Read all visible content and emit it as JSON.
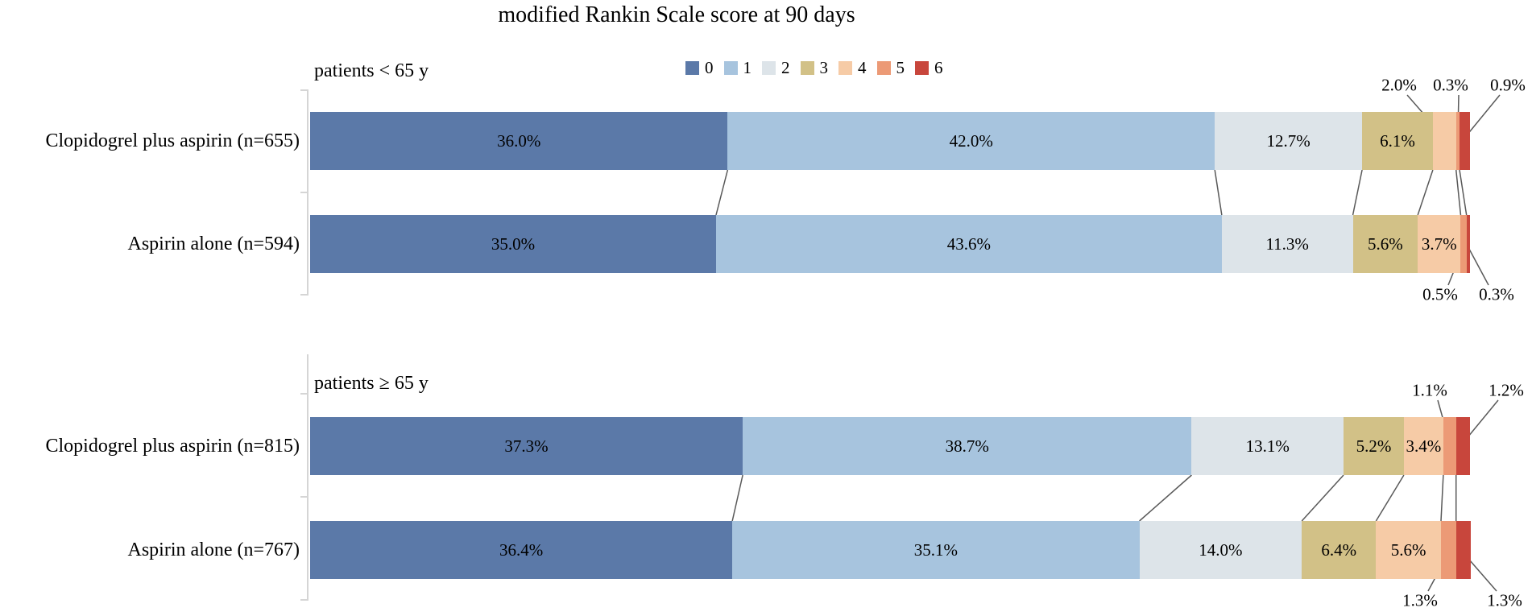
{
  "chart_data": {
    "type": "bar",
    "orientation": "horizontal",
    "stacked": true,
    "unit": "%",
    "title": "modified Rankin Scale score at 90 days",
    "xlim": [
      0,
      100
    ],
    "grid": false,
    "legend_position": "top",
    "legend_title": "modified Rankin Scale score",
    "categories_note": "two age subgroup panels, each with two treatment rows",
    "groups": [
      {
        "label": "patients < 65 y",
        "rows": [
          {
            "category": "Clopidogrel plus aspirin (n=655)",
            "n": 655,
            "values": [
              36.0,
              42.0,
              12.7,
              6.1,
              2.0,
              0.3,
              0.9
            ],
            "labels": {
              "in_bar": [
                0,
                1,
                2,
                3
              ],
              "callout": [
                4,
                5,
                6
              ],
              "callout_side": "above"
            }
          },
          {
            "category": "Aspirin alone (n=594)",
            "n": 594,
            "values": [
              35.0,
              43.6,
              11.3,
              5.6,
              3.7,
              0.5,
              0.3
            ],
            "labels": {
              "in_bar": [
                0,
                1,
                2,
                3,
                4
              ],
              "callout": [
                5,
                6
              ],
              "callout_side": "below"
            }
          }
        ]
      },
      {
        "label": "patients ≥ 65 y",
        "rows": [
          {
            "category": "Clopidogrel plus aspirin (n=815)",
            "n": 815,
            "values": [
              37.3,
              38.7,
              13.1,
              5.2,
              3.4,
              1.1,
              1.2
            ],
            "labels": {
              "in_bar": [
                0,
                1,
                2,
                3,
                4
              ],
              "callout": [
                5,
                6
              ],
              "callout_side": "above"
            }
          },
          {
            "category": "Aspirin alone (n=767)",
            "n": 767,
            "values": [
              36.4,
              35.1,
              14.0,
              6.4,
              5.6,
              1.3,
              1.3
            ],
            "labels": {
              "in_bar": [
                0,
                1,
                2,
                3,
                4
              ],
              "callout": [
                5,
                6
              ],
              "callout_side": "below"
            }
          }
        ]
      }
    ]
  },
  "legend": {
    "entries": [
      {
        "label": "0",
        "color": "#5b79a8"
      },
      {
        "label": "1",
        "color": "#a7c4de"
      },
      {
        "label": "2",
        "color": "#dde4e9"
      },
      {
        "label": "3",
        "color": "#d2c187"
      },
      {
        "label": "4",
        "color": "#f6cba6"
      },
      {
        "label": "5",
        "color": "#ec9a76"
      },
      {
        "label": "6",
        "color": "#c8463c"
      }
    ]
  },
  "style_colors": {
    "connector_line": "#595959",
    "axis_line": "#d5d5d5",
    "label_text": "#000000"
  }
}
